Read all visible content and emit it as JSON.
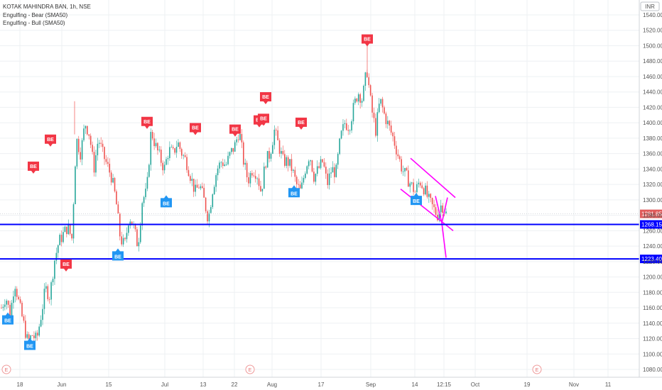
{
  "header": {
    "symbol": "KOTAK MAHINDRA BAN, 1h, NSE",
    "indicator_bear": "Engulfing - Bear (SMA50)",
    "indicator_bull": "Engulfing - Bull (SMA50)"
  },
  "currency": "INR",
  "colors": {
    "up": "#26a69a",
    "down": "#ef5350",
    "bear_flag": "#f23645",
    "bull_flag": "#2196f3",
    "support_line": "#0000ff",
    "trendline": "#ff00ff",
    "grid": "#eef0f3",
    "last_price": "#e05a5a"
  },
  "chart_data": {
    "type": "candlestick",
    "title": "KOTAK MAHINDRA BAN, 1h, NSE",
    "ylim": [
      1070,
      1550
    ],
    "y_ticks": [
      1080,
      1100,
      1120,
      1140,
      1160,
      1180,
      1200,
      1220,
      1240,
      1260,
      1280,
      1300,
      1320,
      1340,
      1360,
      1380,
      1400,
      1420,
      1440,
      1460,
      1480,
      1500,
      1520,
      1540
    ],
    "x_ticks": [
      "18",
      "Jun",
      "15",
      "Jul",
      "13",
      "22",
      "Aug",
      "17",
      "Sep",
      "14",
      "12:15",
      "Oct",
      "19",
      "Nov",
      "11"
    ],
    "series_close_path": [
      1160,
      1175,
      1150,
      1195,
      1165,
      1140,
      1115,
      1125,
      1118,
      1150,
      1185,
      1175,
      1220,
      1245,
      1255,
      1265,
      1250,
      1380,
      1360,
      1400,
      1385,
      1340,
      1380,
      1360,
      1345,
      1330,
      1300,
      1250,
      1240,
      1280,
      1265,
      1240,
      1300,
      1310,
      1390,
      1370,
      1355,
      1340,
      1365,
      1360,
      1375,
      1360,
      1350,
      1330,
      1310,
      1320,
      1300,
      1275,
      1315,
      1340,
      1350,
      1345,
      1360,
      1370,
      1390,
      1350,
      1325,
      1340,
      1335,
      1310,
      1350,
      1360,
      1390,
      1370,
      1350,
      1350,
      1340,
      1320,
      1310,
      1340,
      1360,
      1330,
      1340,
      1350,
      1320,
      1340,
      1335,
      1380,
      1400,
      1395,
      1420,
      1440,
      1430,
      1470,
      1420,
      1390,
      1430,
      1410,
      1395,
      1380,
      1360,
      1340,
      1330,
      1320,
      1310,
      1325,
      1315,
      1300,
      1290,
      1280,
      1295,
      1282
    ],
    "levels": [
      1268.15,
      1223.4
    ],
    "last_price": 1281.85,
    "bear_signals": [
      {
        "x": 47,
        "value": 1335
      },
      {
        "x": 71,
        "value": 1370
      },
      {
        "x": 93,
        "value": 1208
      },
      {
        "x": 207,
        "value": 1393
      },
      {
        "x": 275,
        "value": 1385
      },
      {
        "x": 331,
        "value": 1383
      },
      {
        "x": 365,
        "value": 1395
      },
      {
        "x": 371,
        "value": 1397
      },
      {
        "x": 374,
        "value": 1425
      },
      {
        "x": 424,
        "value": 1392
      },
      {
        "x": 517,
        "value": 1500
      }
    ],
    "bull_signals": [
      {
        "x": 11,
        "value": 1153
      },
      {
        "x": 42,
        "value": 1120
      },
      {
        "x": 166,
        "value": 1236
      },
      {
        "x": 234,
        "value": 1305
      },
      {
        "x": 414,
        "value": 1318
      },
      {
        "x": 586,
        "value": 1308
      }
    ],
    "signal_label": "BE",
    "trendlines": [
      {
        "x1": 578,
        "v1": 1354,
        "x2": 641,
        "v2": 1303
      },
      {
        "x1": 564,
        "v1": 1314,
        "x2": 638,
        "v2": 1260
      },
      {
        "x1": 630,
        "v1": 1303,
        "x2": 622,
        "v2": 1270
      },
      {
        "x1": 622,
        "v1": 1270,
        "x2": 628,
        "v2": 1225
      },
      {
        "x1": 613,
        "v1": 1305,
        "x2": 622,
        "v2": 1270
      }
    ]
  },
  "event_markers": [
    "E",
    "E",
    "E"
  ],
  "price_labels": {
    "last": "1281.85",
    "level1": "1268.15",
    "level2": "1223.40"
  }
}
